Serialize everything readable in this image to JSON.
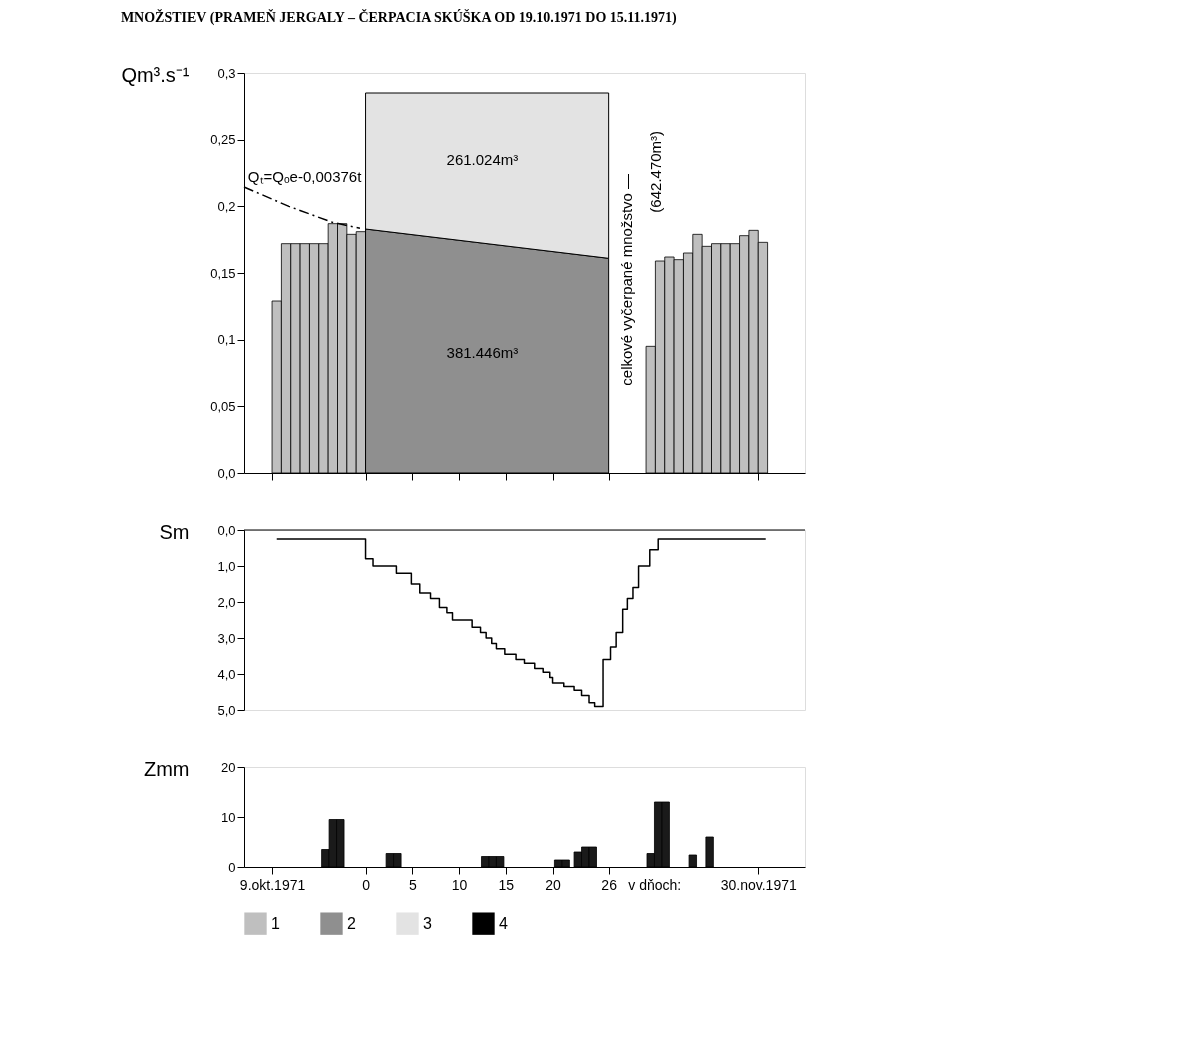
{
  "chart_data": [
    {
      "type": "bar",
      "title": "MNOŽSTIEV (PRAMEŇ JERGALY – ČERPACIA SKÚŠKA OD 19.10.1971 DO 15.11.1971)",
      "ylabel": "Qm³.s⁻¹",
      "xlim": [
        -13,
        47
      ],
      "ylim": [
        0,
        0.3
      ],
      "xticks": [
        {
          "value": -10,
          "label": null
        },
        {
          "value": 0,
          "label": null
        },
        {
          "value": 5,
          "label": null
        },
        {
          "value": 10,
          "label": null
        },
        {
          "value": 15,
          "label": null
        },
        {
          "value": 20,
          "label": null
        },
        {
          "value": 26,
          "label": null
        },
        {
          "value": 42,
          "label": null
        }
      ],
      "yticks": [
        {
          "value": 0,
          "label": "0,0"
        },
        {
          "value": 0.05,
          "label": "0,05"
        },
        {
          "value": 0.1,
          "label": "0,1"
        },
        {
          "value": 0.15,
          "label": "0,15"
        },
        {
          "value": 0.2,
          "label": "0,2"
        },
        {
          "value": 0.25,
          "label": "0,25"
        },
        {
          "value": 0.3,
          "label": "0,3"
        }
      ],
      "tick_labels": "y",
      "legend": "bottom",
      "series": [
        {
          "name": "1",
          "type": "bar",
          "color": "#bfbfbf",
          "x": [
            -9.5,
            -8.5,
            -7.5,
            -6.5,
            -5.5,
            -4.5,
            -3.5,
            -2.5,
            -1.5,
            -0.5,
            30.5,
            31.5,
            32.5,
            33.5,
            34.5,
            35.5,
            36.5,
            37.5,
            38.5,
            39.5,
            40.5,
            41.5,
            42.5
          ],
          "values": [
            0.129,
            0.172,
            0.172,
            0.172,
            0.172,
            0.172,
            0.187,
            0.187,
            0.179,
            0.181,
            0.095,
            0.159,
            0.162,
            0.16,
            0.165,
            0.179,
            0.17,
            0.172,
            0.172,
            0.172,
            0.178,
            0.182,
            0.173
          ]
        },
        {
          "name": "2",
          "type": "area",
          "color": "#8f8f8f",
          "x": [
            0,
            26
          ],
          "values": [
            0.183,
            0.161
          ]
        },
        {
          "name": "3",
          "type": "area",
          "color": "#e3e3e3",
          "x": [
            0,
            26
          ],
          "values": [
            0.285,
            0.285
          ]
        },
        {
          "name": "4",
          "type": "line",
          "color": "#000000",
          "line_style": "dashed",
          "x": [
            -13,
            -8.2,
            -3.55,
            -0.6
          ],
          "values": [
            0.2145,
            0.2,
            0.188,
            0.1835
          ]
        }
      ],
      "annotations": [
        "Qₜ=Qₒe-0,00376t",
        "261.024m³",
        "381.446m³",
        "celkové vyčerpané množstvo —",
        "(642.470m³)"
      ]
    },
    {
      "type": "step",
      "ylabel": "Sm",
      "xlim": [
        -13,
        47
      ],
      "ylim": [
        5,
        0
      ],
      "yticks": [
        {
          "value": 0,
          "label": "0,0"
        },
        {
          "value": 1,
          "label": "1,0"
        },
        {
          "value": 2,
          "label": "2,0"
        },
        {
          "value": 3,
          "label": "3,0"
        },
        {
          "value": 4,
          "label": "4,0"
        },
        {
          "value": 5,
          "label": "5,0"
        }
      ],
      "tick_labels": "y",
      "ref_lines": [
        {
          "axis": "y",
          "value": 0,
          "color": "#000000"
        }
      ],
      "series": [
        {
          "color": "#000000",
          "line_style": "solid",
          "x": [
            -9.5,
            0,
            0.8,
            3.3,
            4.9,
            5.8,
            6.95,
            7.9,
            8.7,
            9.3,
            11.4,
            12.3,
            12.9,
            13.5,
            14.0,
            14.9,
            16.1,
            17.0,
            18.1,
            19.0,
            19.7,
            20.0,
            21.2,
            22.3,
            23.1,
            23.9,
            24.5,
            25.4,
            26.2,
            26.8,
            27.5,
            28.0,
            28.6,
            29.2,
            30.4,
            31.3,
            42.8
          ],
          "values": [
            0.25,
            0.8,
            1.0,
            1.2,
            1.5,
            1.75,
            1.9,
            2.15,
            2.3,
            2.5,
            2.7,
            2.85,
            3.0,
            3.15,
            3.3,
            3.45,
            3.6,
            3.7,
            3.85,
            3.95,
            4.1,
            4.25,
            4.35,
            4.45,
            4.6,
            4.8,
            4.9,
            3.6,
            3.25,
            2.85,
            2.2,
            1.9,
            1.6,
            1.0,
            0.55,
            0.25,
            0.25
          ]
        }
      ]
    },
    {
      "type": "bar",
      "ylabel": "Zmm",
      "xlim": [
        -13,
        47
      ],
      "ylim": [
        0,
        20
      ],
      "yticks": [
        0,
        10,
        20
      ],
      "xticks": [
        {
          "value": -10,
          "label": "9.okt.1971"
        },
        0,
        5,
        10,
        15,
        20,
        26,
        {
          "value": 42,
          "label": "30.nov.1971"
        }
      ],
      "series": [
        {
          "color": "#1a1a1a",
          "x": [
            -4.3,
            -3.5,
            -2.7,
            2.6,
            3.4,
            12.8,
            13.6,
            14.4,
            20.6,
            21.4,
            22.7,
            23.5,
            24.3,
            30.5,
            31.3,
            32.1,
            35.0,
            36.8
          ],
          "values": [
            3.5,
            9.5,
            9.5,
            2.7,
            2.7,
            2.1,
            2.1,
            2.1,
            1.4,
            1.4,
            3.0,
            4.0,
            4.0,
            2.7,
            13.0,
            13.0,
            2.4,
            6.0
          ]
        }
      ],
      "annotations": [
        "v dňoch:"
      ]
    }
  ]
}
